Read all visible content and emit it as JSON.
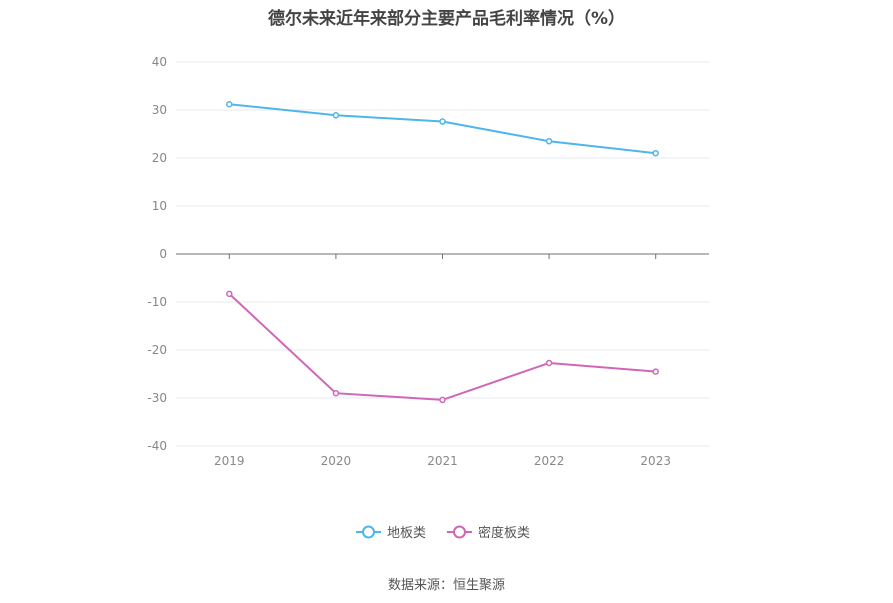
{
  "chart_data": {
    "type": "line",
    "title": "德尔未来近年来部分主要产品毛利率情况（%）",
    "categories": [
      "2019",
      "2020",
      "2021",
      "2022",
      "2023"
    ],
    "series": [
      {
        "name": "地板类",
        "color": "#4db6ea",
        "values": [
          31.2,
          28.9,
          27.6,
          23.5,
          21.0
        ]
      },
      {
        "name": "密度板类",
        "color": "#d166b8",
        "values": [
          -8.3,
          -29.0,
          -30.4,
          -22.7,
          -24.5
        ]
      }
    ],
    "ylim": [
      -40,
      40
    ],
    "yticks": [
      -40,
      -30,
      -20,
      -10,
      0,
      10,
      20,
      30,
      40
    ],
    "grid": true,
    "legend_position": "bottom-center",
    "source": "数据来源：恒生聚源"
  }
}
